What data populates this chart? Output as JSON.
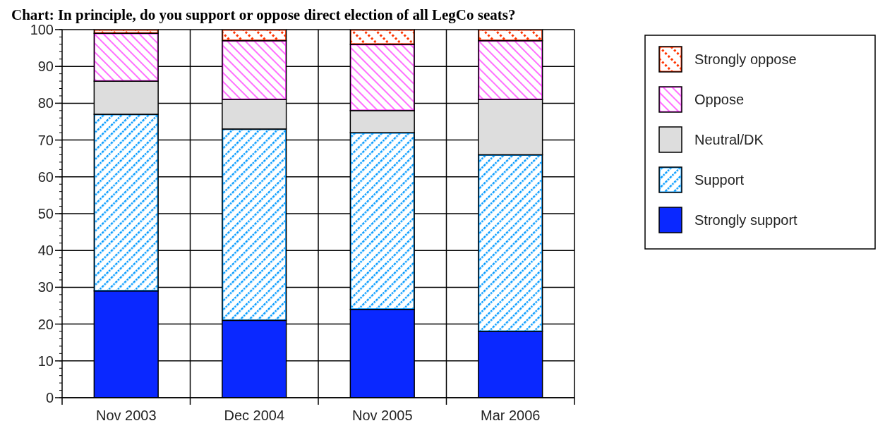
{
  "chart_data": {
    "type": "bar",
    "title": "Chart: In principle, do you support or oppose direct election of all LegCo seats?",
    "categories": [
      "Nov 2003",
      "Dec 2004",
      "Nov 2005",
      "Mar 2006"
    ],
    "stacked": true,
    "ylim": [
      0,
      100
    ],
    "yticks": [
      0,
      10,
      20,
      30,
      40,
      50,
      60,
      70,
      80,
      90,
      100
    ],
    "grid": true,
    "legend": "right",
    "series": [
      {
        "name": "Strongly support",
        "color": "#0a28ff",
        "values": [
          29,
          21,
          24,
          18
        ]
      },
      {
        "name": "Support",
        "color": "#0099ff",
        "values": [
          48,
          52,
          48,
          48
        ]
      },
      {
        "name": "Neutral/DK",
        "color": "#dddddd",
        "values": [
          9,
          8,
          6,
          15
        ]
      },
      {
        "name": "Oppose",
        "color": "#ff33ff",
        "values": [
          13,
          16,
          18,
          16
        ]
      },
      {
        "name": "Strongly oppose",
        "color": "#ff3300",
        "values": [
          1,
          3,
          4,
          3
        ]
      }
    ]
  }
}
